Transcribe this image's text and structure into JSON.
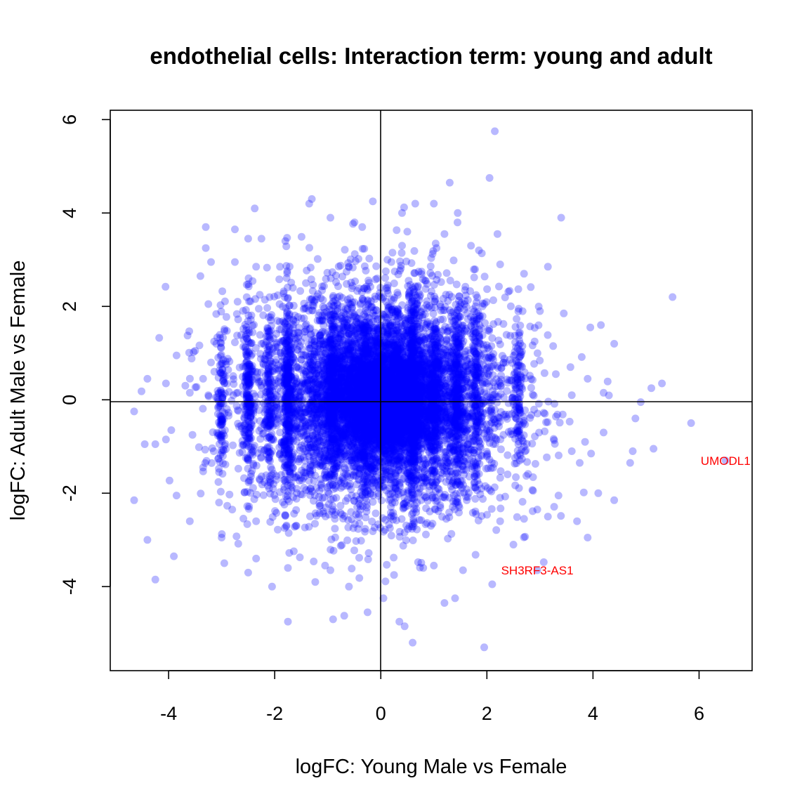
{
  "chart_data": {
    "type": "scatter",
    "title": "endothelial cells: Interaction term: young and adult",
    "xlabel": "logFC: Young Male vs Female",
    "ylabel": "logFC: Adult Male vs Female",
    "xlim": [
      -5.1,
      7.0
    ],
    "ylim": [
      -5.8,
      6.2
    ],
    "xticks": [
      -4,
      -2,
      0,
      2,
      4,
      6
    ],
    "yticks": [
      -4,
      -2,
      0,
      2,
      4,
      6
    ],
    "reference_lines": {
      "x": 0,
      "y": 0
    },
    "grid": false,
    "point_color": "#0000ff",
    "point_opacity": 0.28,
    "highlight_color": "#ff0000",
    "series": [
      {
        "points": [
          [
            2.15,
            5.75
          ],
          [
            2.05,
            4.75
          ],
          [
            1.3,
            4.65
          ],
          [
            -1.3,
            4.3
          ],
          [
            -1.35,
            4.2
          ],
          [
            -0.15,
            4.25
          ],
          [
            0.65,
            4.2
          ],
          [
            1.0,
            4.2
          ],
          [
            0.4,
            4.0
          ],
          [
            1.45,
            4.0
          ],
          [
            3.4,
            3.9
          ],
          [
            -0.95,
            3.9
          ],
          [
            -3.3,
            3.7
          ],
          [
            -2.75,
            3.65
          ],
          [
            -0.35,
            3.7
          ],
          [
            0.5,
            3.6
          ],
          [
            1.2,
            3.55
          ],
          [
            2.2,
            3.55
          ],
          [
            -2.5,
            3.45
          ],
          [
            -2.25,
            3.45
          ],
          [
            -3.3,
            3.25
          ],
          [
            -1.8,
            3.4
          ],
          [
            1.05,
            3.25
          ],
          [
            0.4,
            3.3
          ],
          [
            1.7,
            3.3
          ],
          [
            1.85,
            3.2
          ],
          [
            -3.2,
            2.95
          ],
          [
            -2.75,
            2.95
          ],
          [
            -2.35,
            2.85
          ],
          [
            2.25,
            2.9
          ],
          [
            3.15,
            2.85
          ],
          [
            -1.9,
            2.85
          ],
          [
            2.7,
            2.7
          ],
          [
            0.2,
            2.95
          ],
          [
            5.5,
            2.2
          ],
          [
            -3.25,
            2.05
          ],
          [
            -3.4,
            2.65
          ],
          [
            -2.7,
            2.1
          ],
          [
            -2.3,
            1.95
          ],
          [
            2.6,
            1.95
          ],
          [
            3.0,
            1.9
          ],
          [
            3.45,
            1.85
          ],
          [
            -3.1,
            1.2
          ],
          [
            -2.55,
            1.35
          ],
          [
            -2.25,
            1.2
          ],
          [
            2.9,
            1.25
          ],
          [
            3.25,
            1.15
          ],
          [
            3.95,
            1.55
          ],
          [
            4.15,
            1.6
          ],
          [
            4.4,
            1.2
          ],
          [
            -3.85,
            0.95
          ],
          [
            -3.5,
            1.05
          ],
          [
            -3.2,
            0.8
          ],
          [
            -3.35,
            0.45
          ],
          [
            -3.6,
            0.15
          ],
          [
            -4.4,
            0.45
          ],
          [
            -4.05,
            0.35
          ],
          [
            -3.25,
            0.1
          ],
          [
            3.9,
            0.45
          ],
          [
            3.3,
            0.55
          ],
          [
            3.6,
            0.1
          ],
          [
            4.2,
            0.15
          ],
          [
            5.1,
            0.25
          ],
          [
            5.3,
            0.35
          ],
          [
            4.9,
            -0.05
          ],
          [
            5.85,
            -0.5
          ],
          [
            4.8,
            -0.4
          ],
          [
            -4.65,
            -0.25
          ],
          [
            -4.45,
            -0.95
          ],
          [
            -4.25,
            -0.95
          ],
          [
            -3.95,
            -0.65
          ],
          [
            -4.05,
            -0.85
          ],
          [
            -3.55,
            -0.75
          ],
          [
            -3.35,
            -1.45
          ],
          [
            -3.05,
            -1.55
          ],
          [
            -3.15,
            -1.1
          ],
          [
            4.2,
            -0.7
          ],
          [
            3.85,
            -0.9
          ],
          [
            3.6,
            -1.1
          ],
          [
            4.75,
            -1.1
          ],
          [
            4.7,
            -1.35
          ],
          [
            3.75,
            -1.35
          ],
          [
            -4.65,
            -2.15
          ],
          [
            -3.85,
            -2.05
          ],
          [
            -3.6,
            -2.6
          ],
          [
            -3.05,
            -2.2
          ],
          [
            -2.8,
            -2.35
          ],
          [
            -4.4,
            -3.0
          ],
          [
            -3.9,
            -3.35
          ],
          [
            -4.25,
            -3.85
          ],
          [
            -3.0,
            -2.95
          ],
          [
            -2.95,
            -3.5
          ],
          [
            -2.5,
            -3.7
          ],
          [
            -2.35,
            -3.4
          ],
          [
            -1.75,
            -3.6
          ],
          [
            -2.35,
            -2.6
          ],
          [
            -2.05,
            -4.0
          ],
          [
            4.1,
            -2.0
          ],
          [
            4.4,
            -2.15
          ],
          [
            3.7,
            -2.6
          ],
          [
            3.9,
            -2.95
          ],
          [
            3.15,
            -2.5
          ],
          [
            3.35,
            -2.05
          ],
          [
            2.95,
            -2.35
          ],
          [
            2.5,
            -3.1
          ],
          [
            2.25,
            -2.6
          ],
          [
            2.7,
            -2.55
          ],
          [
            -1.75,
            -4.75
          ],
          [
            -0.9,
            -4.7
          ],
          [
            0.35,
            -4.75
          ],
          [
            0.45,
            -4.85
          ],
          [
            -0.25,
            -4.55
          ],
          [
            0.05,
            -4.25
          ],
          [
            0.6,
            -5.2
          ],
          [
            1.95,
            -5.3
          ],
          [
            1.2,
            -4.35
          ],
          [
            1.4,
            -4.25
          ],
          [
            1.55,
            -3.65
          ],
          [
            2.1,
            -3.95
          ],
          [
            -0.6,
            -4.0
          ],
          [
            -0.95,
            -3.65
          ],
          [
            -1.05,
            -3.55
          ],
          [
            0.8,
            -3.6
          ],
          [
            1.0,
            -3.55
          ],
          [
            0.25,
            -3.75
          ]
        ]
      },
      {
        "clusters": [
          {
            "cx": 0.0,
            "cy": 0.0,
            "sx": 1.2,
            "sy": 1.15,
            "n": 5200
          },
          {
            "cx": 0.0,
            "cy": 0.0,
            "sx": 0.55,
            "sy": 0.6,
            "n": 2600
          },
          {
            "cx": -1.75,
            "cy": 0.0,
            "sx": 0.04,
            "sy": 1.05,
            "n": 320
          },
          {
            "cx": 0.6,
            "cy": 0.0,
            "sx": 0.04,
            "sy": 1.15,
            "n": 420
          },
          {
            "cx": -2.5,
            "cy": 0.0,
            "sx": 0.04,
            "sy": 0.95,
            "n": 200
          },
          {
            "cx": 1.45,
            "cy": 0.0,
            "sx": 0.04,
            "sy": 1.0,
            "n": 220
          },
          {
            "cx": -0.9,
            "cy": 0.0,
            "sx": 0.05,
            "sy": 1.1,
            "n": 220
          },
          {
            "cx": 1.0,
            "cy": 0.0,
            "sx": 0.04,
            "sy": 1.0,
            "n": 180
          },
          {
            "cx": 1.8,
            "cy": 0.0,
            "sx": 0.04,
            "sy": 1.0,
            "n": 150
          },
          {
            "cx": -2.1,
            "cy": 0.0,
            "sx": 0.04,
            "sy": 1.0,
            "n": 130
          },
          {
            "cx": -3.0,
            "cy": 0.0,
            "sx": 0.04,
            "sy": 0.85,
            "n": 110
          },
          {
            "cx": 2.6,
            "cy": 0.0,
            "sx": 0.04,
            "sy": 0.9,
            "n": 100
          },
          {
            "cx": -0.3,
            "cy": 0.0,
            "sx": 0.04,
            "sy": 1.15,
            "n": 150
          },
          {
            "cx": 0.25,
            "cy": 0.0,
            "sx": 0.04,
            "sy": 1.1,
            "n": 130
          }
        ]
      },
      {
        "name": "highlighted",
        "points": [
          {
            "x": 6.5,
            "y": -1.3,
            "label": "UMODL1"
          },
          {
            "x": 2.95,
            "y": -3.65,
            "label": "SH3RF3-AS1"
          }
        ]
      }
    ]
  }
}
